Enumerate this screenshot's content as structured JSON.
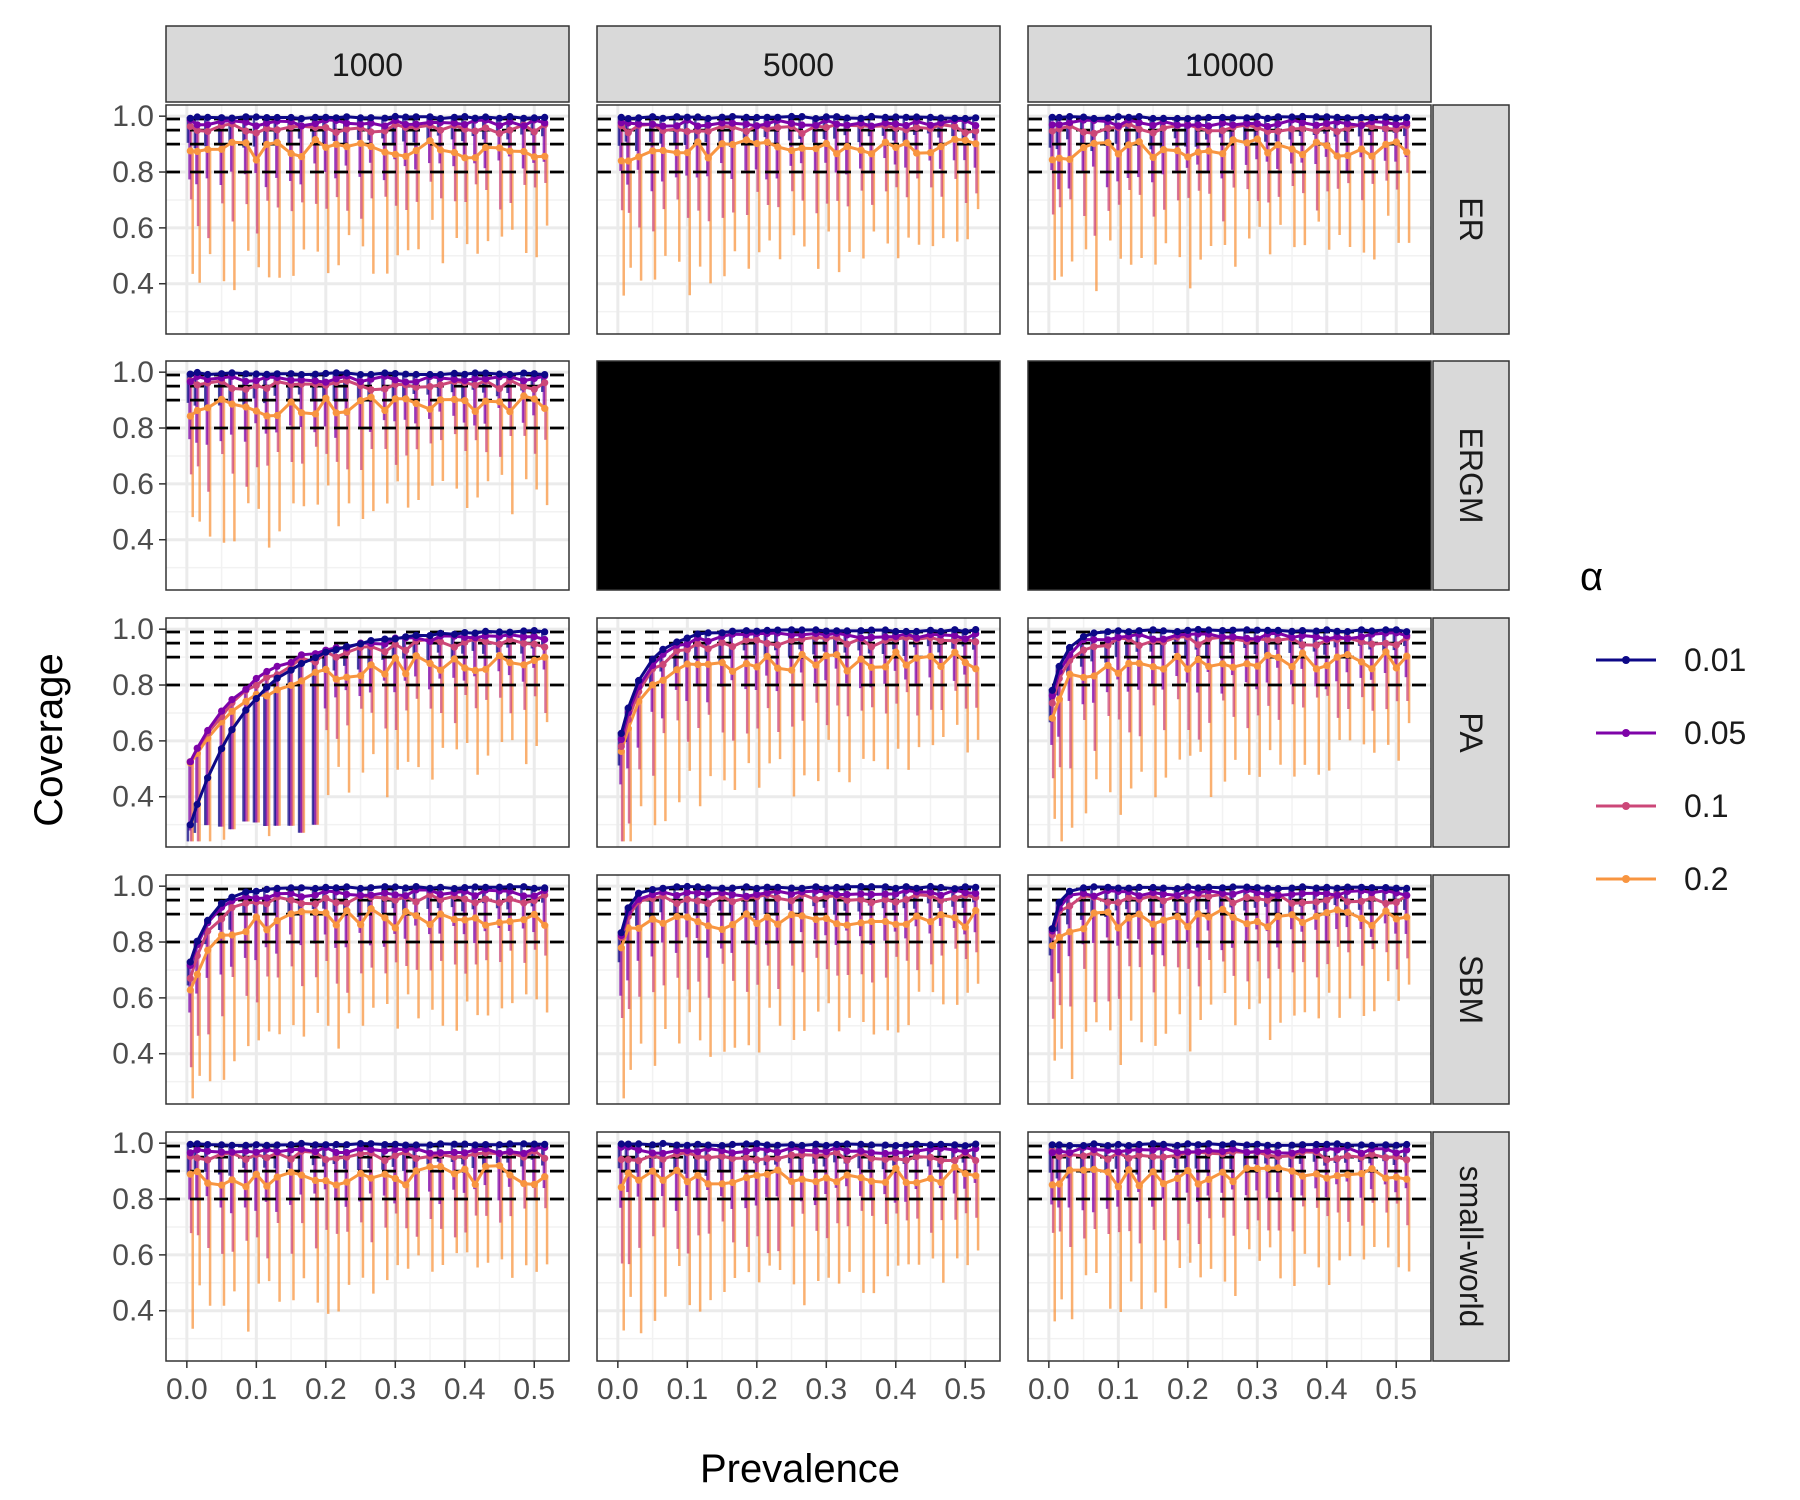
{
  "chart_data": {
    "type": "line",
    "ylabel": "Coverage",
    "xlabel": "Prevalence",
    "legend": {
      "title": "α",
      "placement": "right",
      "entries": [
        "0.01",
        "0.05",
        "0.1",
        "0.2"
      ]
    },
    "facet_columns": [
      "1000",
      "5000",
      "10000"
    ],
    "facet_rows": [
      "ER",
      "ERGM",
      "PA",
      "SBM",
      "small-world"
    ],
    "empty_panels": [
      [
        "ERGM",
        "5000"
      ],
      [
        "ERGM",
        "10000"
      ]
    ],
    "xlim": [
      -0.03,
      0.55
    ],
    "ylim": [
      0.22,
      1.04
    ],
    "x_ticks": [
      "0.0",
      "0.1",
      "0.2",
      "0.3",
      "0.4",
      "0.5"
    ],
    "y_ticks": [
      "0.4",
      "0.6",
      "0.8",
      "1.0"
    ],
    "reference_lines": [
      0.8,
      0.9,
      0.95,
      0.99
    ],
    "grid": true,
    "x": [
      0.005,
      0.015,
      0.03,
      0.05,
      0.065,
      0.085,
      0.1,
      0.115,
      0.13,
      0.15,
      0.165,
      0.185,
      0.2,
      0.215,
      0.23,
      0.25,
      0.265,
      0.285,
      0.3,
      0.315,
      0.33,
      0.35,
      0.365,
      0.385,
      0.4,
      0.415,
      0.43,
      0.45,
      0.465,
      0.485,
      0.5,
      0.515
    ],
    "series": [
      {
        "name": "0.01",
        "color": "#0d0887"
      },
      {
        "name": "0.05",
        "color": "#7e03a8"
      },
      {
        "name": "0.1",
        "color": "#cc4778"
      },
      {
        "name": "0.2",
        "color": "#f89540"
      }
    ]
  }
}
